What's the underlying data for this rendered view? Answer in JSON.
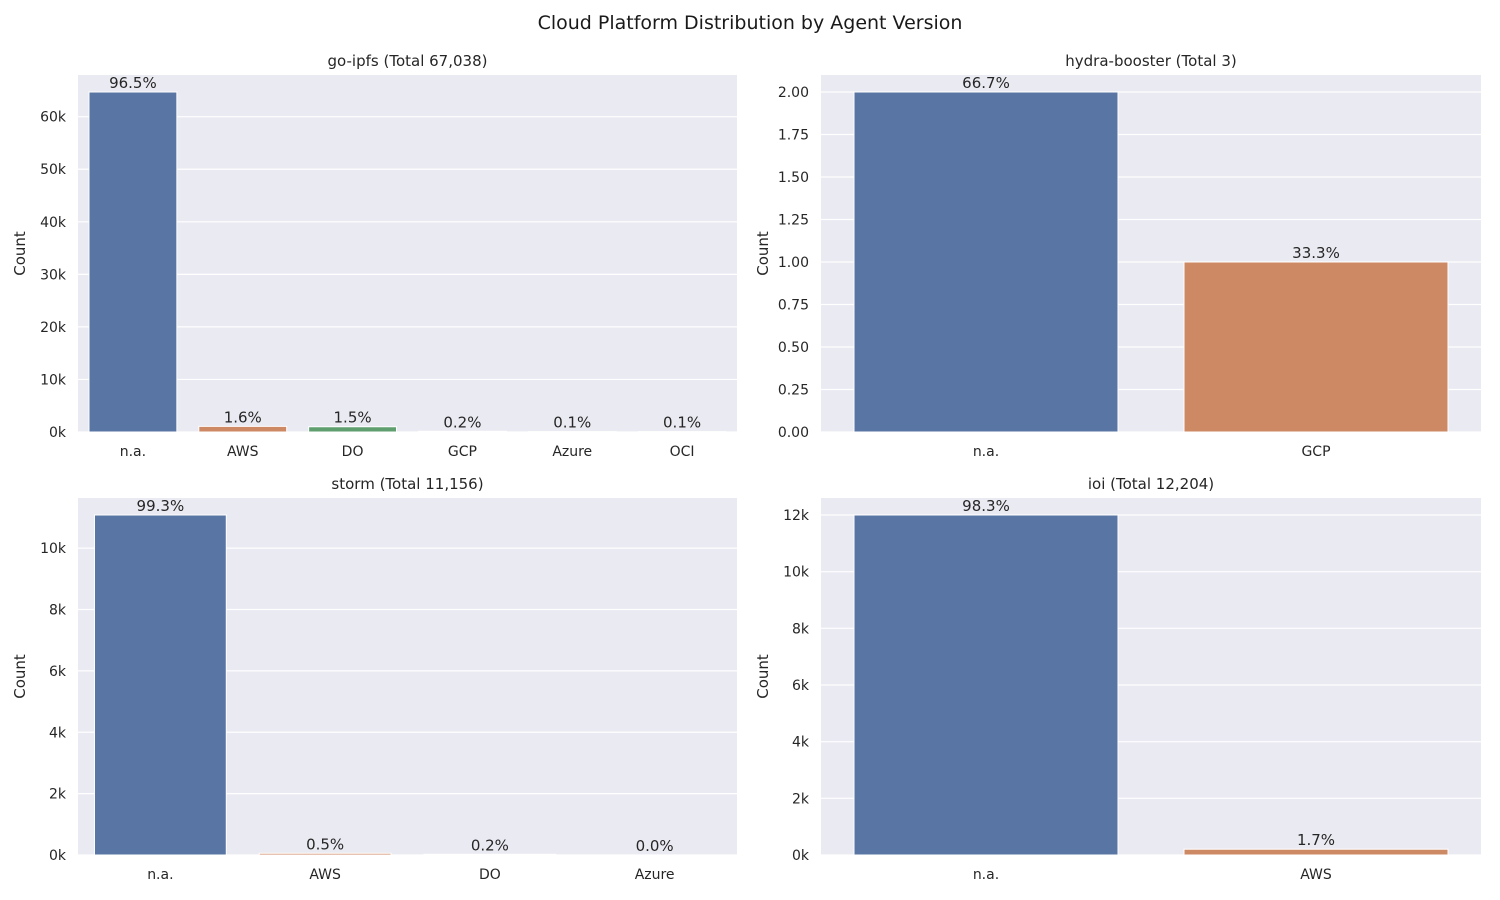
{
  "title": "Cloud Platform Distribution by Agent Version",
  "colors": {
    "plot_bg": "#EAEAF2",
    "grid": "#FFFFFF",
    "text": "#262626"
  },
  "chart_data": [
    {
      "type": "bar",
      "title": "go-ipfs (Total 67,038)",
      "ylabel": "Count",
      "xlabel": "",
      "grid": true,
      "categories": [
        "n.a.",
        "AWS",
        "DO",
        "GCP",
        "Azure",
        "OCI"
      ],
      "values": [
        64700,
        1070,
        1000,
        130,
        70,
        70
      ],
      "labels": [
        "96.5%",
        "1.6%",
        "1.5%",
        "0.2%",
        "0.1%",
        "0.1%"
      ],
      "colors": [
        "#5975A4",
        "#CC8963",
        "#5F9E6E",
        "#B55D60",
        "#857AAB",
        "#8D7866"
      ],
      "ylim": [
        0,
        67935
      ],
      "yticks": [
        0,
        10000,
        20000,
        30000,
        40000,
        50000,
        60000
      ],
      "yticklabels": [
        "0k",
        "10k",
        "20k",
        "30k",
        "40k",
        "50k",
        "60k"
      ]
    },
    {
      "type": "bar",
      "title": "hydra-booster (Total 3)",
      "ylabel": "Count",
      "xlabel": "",
      "grid": true,
      "categories": [
        "n.a.",
        "GCP"
      ],
      "values": [
        2,
        1
      ],
      "labels": [
        "66.7%",
        "33.3%"
      ],
      "colors": [
        "#5975A4",
        "#CC8963"
      ],
      "ylim": [
        0,
        2.1
      ],
      "yticks": [
        0,
        0.25,
        0.5,
        0.75,
        1.0,
        1.25,
        1.5,
        1.75,
        2.0
      ],
      "yticklabels": [
        "0.00",
        "0.25",
        "0.50",
        "0.75",
        "1.00",
        "1.25",
        "1.50",
        "1.75",
        "2.00"
      ]
    },
    {
      "type": "bar",
      "title": "storm (Total 11,156)",
      "ylabel": "Count",
      "xlabel": "",
      "grid": true,
      "categories": [
        "n.a.",
        "AWS",
        "DO",
        "Azure"
      ],
      "values": [
        11080,
        56,
        22,
        0
      ],
      "labels": [
        "99.3%",
        "0.5%",
        "0.2%",
        "0.0%"
      ],
      "colors": [
        "#5975A4",
        "#CC8963",
        "#5F9E6E",
        "#B55D60"
      ],
      "ylim": [
        0,
        11634
      ],
      "yticks": [
        0,
        2000,
        4000,
        6000,
        8000,
        10000
      ],
      "yticklabels": [
        "0k",
        "2k",
        "4k",
        "6k",
        "8k",
        "10k"
      ]
    },
    {
      "type": "bar",
      "title": "ioi (Total 12,204)",
      "ylabel": "Count",
      "xlabel": "",
      "grid": true,
      "categories": [
        "n.a.",
        "AWS"
      ],
      "values": [
        12000,
        204
      ],
      "labels": [
        "98.3%",
        "1.7%"
      ],
      "colors": [
        "#5975A4",
        "#CC8963"
      ],
      "ylim": [
        0,
        12600
      ],
      "yticks": [
        0,
        2000,
        4000,
        6000,
        8000,
        10000,
        12000
      ],
      "yticklabels": [
        "0k",
        "2k",
        "4k",
        "6k",
        "8k",
        "10k",
        "12k"
      ]
    }
  ]
}
